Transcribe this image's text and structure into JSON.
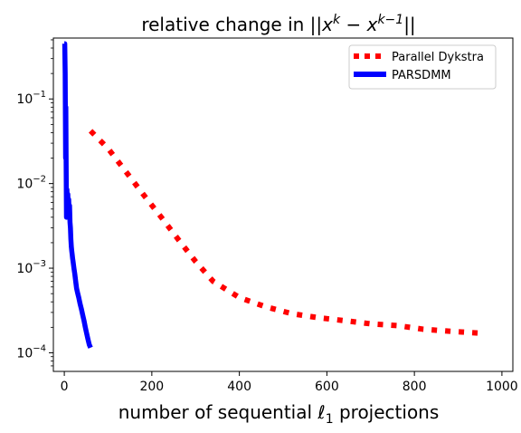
{
  "chart_data": {
    "type": "line",
    "title": "relative change in ||x^k − x^(k−1)||",
    "xlabel": "number of sequential ℓ1 projections",
    "ylabel": "",
    "xlim": [
      -25,
      1025
    ],
    "ylim_log10": [
      -4.22,
      -0.28
    ],
    "y_scale": "log",
    "grid": false,
    "legend_position": "top-right",
    "x_ticks": [
      {
        "value": 0,
        "label": "0"
      },
      {
        "value": 200,
        "label": "200"
      },
      {
        "value": 400,
        "label": "400"
      },
      {
        "value": 600,
        "label": "600"
      },
      {
        "value": 800,
        "label": "800"
      },
      {
        "value": 1000,
        "label": "1000"
      }
    ],
    "y_ticks": [
      {
        "exp": -1,
        "base": "10",
        "sup": "−1"
      },
      {
        "exp": -2,
        "base": "10",
        "sup": "−2"
      },
      {
        "exp": -3,
        "base": "10",
        "sup": "−3"
      },
      {
        "exp": -4,
        "base": "10",
        "sup": "−4"
      }
    ],
    "series": [
      {
        "name": "Parallel Dykstra",
        "color": "#ff0000",
        "style": "dotted",
        "x": [
          60,
          100,
          140,
          180,
          220,
          260,
          300,
          340,
          400,
          460,
          520,
          580,
          640,
          700,
          760,
          820,
          880,
          955
        ],
        "y": [
          0.042,
          0.026,
          0.014,
          0.0075,
          0.0041,
          0.0022,
          0.0012,
          0.0007,
          0.00045,
          0.00035,
          0.00029,
          0.00026,
          0.00024,
          0.00022,
          0.00021,
          0.00019,
          0.00018,
          0.00017
        ]
      },
      {
        "name": "PARSDMM",
        "color": "#0000ff",
        "style": "solid",
        "x": [
          0,
          1,
          2,
          3,
          3.5,
          4,
          5,
          6,
          7,
          8,
          9,
          10,
          11,
          12,
          13,
          14,
          15,
          16,
          17,
          18,
          19,
          20,
          22,
          24,
          26,
          28,
          30,
          33,
          36,
          39,
          42,
          45,
          48,
          51,
          54,
          57,
          60
        ],
        "y": [
          0.45,
          0.45,
          0.2,
          0.02,
          0.08,
          0.025,
          0.004,
          0.0085,
          0.005,
          0.0075,
          0.005,
          0.0065,
          0.0045,
          0.0055,
          0.0035,
          0.003,
          0.0022,
          0.0018,
          0.0016,
          0.00145,
          0.0013,
          0.0012,
          0.001,
          0.00085,
          0.0007,
          0.00058,
          0.00052,
          0.00045,
          0.00038,
          0.00033,
          0.00028,
          0.00024,
          0.0002,
          0.00017,
          0.000145,
          0.000125,
          0.000115
        ]
      }
    ]
  }
}
